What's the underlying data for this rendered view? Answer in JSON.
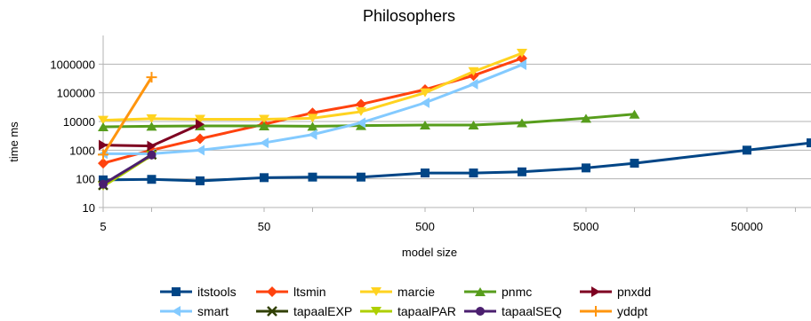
{
  "chart_data": {
    "type": "line",
    "title": "Philosophers",
    "xlabel": "model size",
    "ylabel": "time ms",
    "x_scale": "log",
    "y_scale": "log",
    "xlim": [
      5,
      125000
    ],
    "ylim": [
      10,
      10000000
    ],
    "x_ticks": [
      {
        "value": 5,
        "label": "5"
      },
      {
        "value": 50,
        "label": "50"
      },
      {
        "value": 500,
        "label": "500"
      },
      {
        "value": 5000,
        "label": "5000"
      },
      {
        "value": 50000,
        "label": "50000"
      }
    ],
    "y_ticks": [
      {
        "value": 10,
        "label": "10"
      },
      {
        "value": 100,
        "label": "100"
      },
      {
        "value": 1000,
        "label": "1000"
      },
      {
        "value": 10000,
        "label": "10000"
      },
      {
        "value": 100000,
        "label": "100000"
      },
      {
        "value": 1000000,
        "label": "1000000"
      }
    ],
    "grid": "horizontal",
    "legend_position": "bottom",
    "series": [
      {
        "name": "itstools",
        "color": "#004586",
        "marker": "square",
        "x": [
          5,
          10,
          20,
          50,
          100,
          200,
          500,
          1000,
          2000,
          5000,
          10000,
          50000,
          125000
        ],
        "y": [
          92,
          96,
          85,
          110,
          115,
          115,
          160,
          160,
          175,
          240,
          350,
          1000,
          1800
        ]
      },
      {
        "name": "ltsmin",
        "color": "#ff420e",
        "marker": "diamond",
        "x": [
          5,
          10,
          20,
          50,
          100,
          200,
          500,
          1000,
          2000
        ],
        "y": [
          350,
          1000,
          2500,
          8000,
          20000,
          40000,
          130000,
          400000,
          1600000
        ]
      },
      {
        "name": "marcie",
        "color": "#ffd320",
        "marker": "triangle-down",
        "x": [
          5,
          10,
          20,
          50,
          100,
          200,
          500,
          1000,
          2000
        ],
        "y": [
          11000,
          12500,
          12000,
          12000,
          13000,
          22000,
          100000,
          550000,
          2400000
        ]
      },
      {
        "name": "pnmc",
        "color": "#579d1c",
        "marker": "triangle-up",
        "x": [
          5,
          10,
          20,
          50,
          100,
          200,
          500,
          1000,
          2000,
          5000,
          10000
        ],
        "y": [
          6500,
          6800,
          7000,
          7000,
          6800,
          7200,
          7500,
          7500,
          9000,
          13000,
          18000
        ]
      },
      {
        "name": "pnxdd",
        "color": "#7e0021",
        "marker": "triangle-right",
        "x": [
          5,
          10,
          20
        ],
        "y": [
          1500,
          1400,
          8000
        ]
      },
      {
        "name": "smart",
        "color": "#83caff",
        "marker": "triangle-left",
        "x": [
          5,
          10,
          20,
          50,
          100,
          200,
          500,
          1000,
          2000
        ],
        "y": [
          750,
          750,
          1000,
          1800,
          3500,
          9000,
          45000,
          200000,
          950000
        ]
      },
      {
        "name": "tapaalEXP",
        "color": "#314004",
        "marker": "x",
        "x": [
          5,
          10
        ],
        "y": [
          60,
          700
        ]
      },
      {
        "name": "tapaalPAR",
        "color": "#aecf00",
        "marker": "triangle-down",
        "x": [
          5,
          10
        ],
        "y": [
          55,
          650
        ]
      },
      {
        "name": "tapaalSEQ",
        "color": "#4b1f6f",
        "marker": "circle",
        "x": [
          5,
          10
        ],
        "y": [
          65,
          680
        ]
      },
      {
        "name": "yddpt",
        "color": "#ff950e",
        "marker": "plus",
        "x": [
          5,
          10
        ],
        "y": [
          700,
          350000
        ]
      }
    ]
  }
}
